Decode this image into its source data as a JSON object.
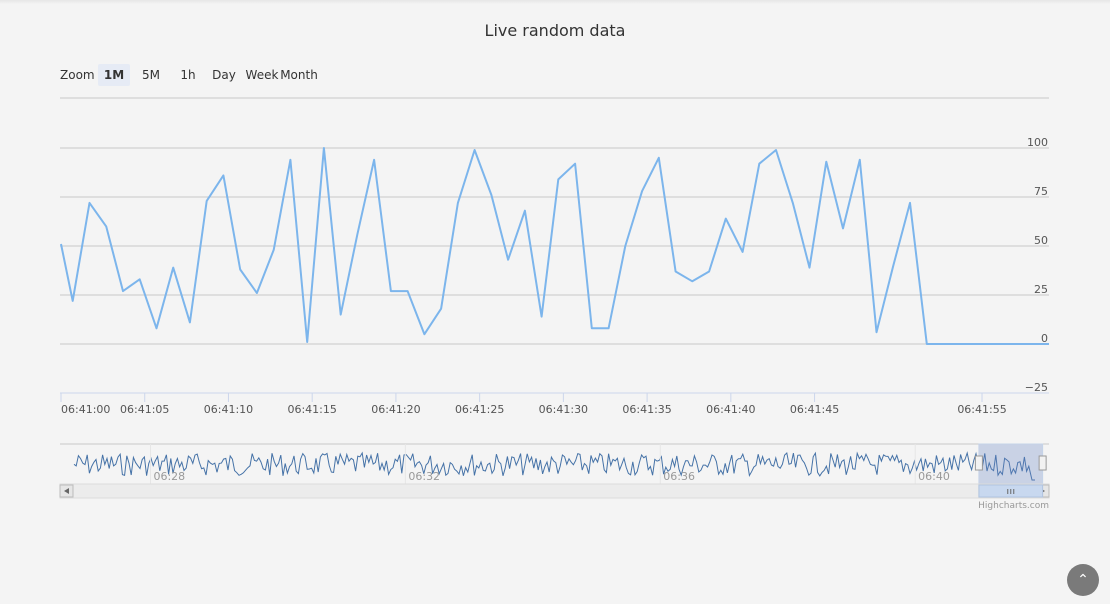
{
  "chart_data": {
    "type": "line",
    "title": "Live random data",
    "zoom": {
      "label": "Zoom",
      "buttons": [
        "1M",
        "5M",
        "1h",
        "Day",
        "Week",
        "Month"
      ],
      "selected": "1M"
    },
    "y_ticks": [
      "100",
      "75",
      "50",
      "25",
      "0",
      "−25"
    ],
    "ylim": [
      -25,
      100
    ],
    "x_ticks": [
      "06:41:00",
      "06:41:05",
      "06:41:10",
      "06:41:15",
      "06:41:20",
      "06:41:25",
      "06:41:30",
      "06:41:35",
      "06:41:40",
      "06:41:45",
      "06:41:55"
    ],
    "x_tick_seconds": [
      0,
      5,
      10,
      15,
      20,
      25,
      30,
      35,
      40,
      45,
      55
    ],
    "xlim_seconds": [
      0,
      59
    ],
    "series": [
      {
        "name": "Random data",
        "color": "#7cb5ec",
        "x": [
          0,
          0.7,
          1.7,
          2.7,
          3.7,
          4.7,
          5.7,
          6.7,
          7.7,
          8.7,
          9.7,
          10.7,
          11.7,
          12.7,
          13.7,
          14.7,
          15.7,
          16.7,
          17.7,
          18.7,
          19.7,
          20.7,
          21.7,
          22.7,
          23.7,
          24.7,
          25.7,
          26.7,
          27.7,
          28.7,
          29.7,
          30.7,
          31.7,
          32.7,
          33.7,
          34.7,
          35.7,
          36.7,
          37.7,
          38.7,
          39.7,
          40.7,
          41.7,
          42.7,
          43.7,
          44.7,
          45.7,
          46.7,
          47.7,
          48.7,
          49.7,
          50.7,
          51.7,
          59
        ],
        "values": [
          51,
          22,
          72,
          60,
          27,
          33,
          8,
          39,
          11,
          73,
          86,
          38,
          26,
          48,
          94,
          1,
          100,
          15,
          56,
          94,
          27,
          27,
          5,
          18,
          72,
          99,
          76,
          43,
          68,
          14,
          84,
          92,
          8,
          8,
          50,
          78,
          95,
          37,
          32,
          37,
          64,
          47,
          92,
          99,
          72,
          39,
          93,
          59,
          94,
          6,
          40,
          72,
          0,
          0
        ]
      }
    ],
    "navigator": {
      "x_ticks": [
        "06:28",
        "06:32",
        "06:36",
        "06:40"
      ],
      "xlim_minutes": [
        26.8,
        42.1
      ],
      "tick_minutes": [
        28,
        32,
        36,
        40
      ],
      "window_minutes": [
        41.0,
        42.0
      ]
    },
    "credits": "Highcharts.com"
  },
  "fab": {
    "icon": "chevron-up-icon",
    "glyph": "⌃"
  }
}
